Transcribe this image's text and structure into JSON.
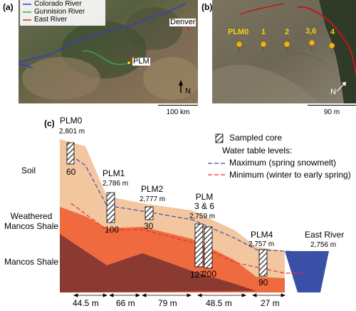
{
  "panel_a": {
    "label": "(a)",
    "legend": [
      {
        "name": "Colorado River",
        "color": "#3a3ac8"
      },
      {
        "name": "Gunnision River",
        "color": "#3fa83f"
      },
      {
        "name": "East River",
        "color": "#d03030"
      }
    ],
    "city": "Denver",
    "site": "PLM",
    "north": "N",
    "scale": "100 km"
  },
  "panel_b": {
    "label": "(b)",
    "sites": [
      "PLM0",
      "1",
      "2",
      "3,6",
      "4"
    ],
    "north": "N",
    "scale": "90 m"
  },
  "panel_c": {
    "label": "(c)",
    "wells": [
      {
        "name": "PLM0",
        "elev": "2,801 m",
        "depth": "60"
      },
      {
        "name": "PLM1",
        "elev": "2,786 m",
        "depth": "100"
      },
      {
        "name": "PLM2",
        "elev": "2,777 m",
        "depth": "30"
      },
      {
        "name": "PLM\n3 & 6",
        "elev": "2,759 m",
        "depth": "127",
        "depth2": "200"
      },
      {
        "name": "PLM4",
        "elev": "2,757 m",
        "depth": "90"
      }
    ],
    "river": {
      "name": "East River",
      "elev": "2,756 m"
    },
    "layers": [
      {
        "name": "Soil",
        "color": "#f2c7a0"
      },
      {
        "name": "Weathered\nMancos Shale",
        "color": "#f06a40"
      },
      {
        "name": "Mancos Shale",
        "color": "#8a3a30"
      }
    ],
    "river_color": "#3a4fa8",
    "legend": {
      "core": "Sampled core",
      "heading": "Water table levels:",
      "max": "Maximum (spring snowmelt)",
      "min": "Minimum (winter to early spring)",
      "max_color": "#4a4ab8",
      "min_color": "#e83030"
    },
    "distances": [
      "44.5 m",
      "66 m",
      "79 m",
      "48.5 m",
      "27 m"
    ]
  }
}
